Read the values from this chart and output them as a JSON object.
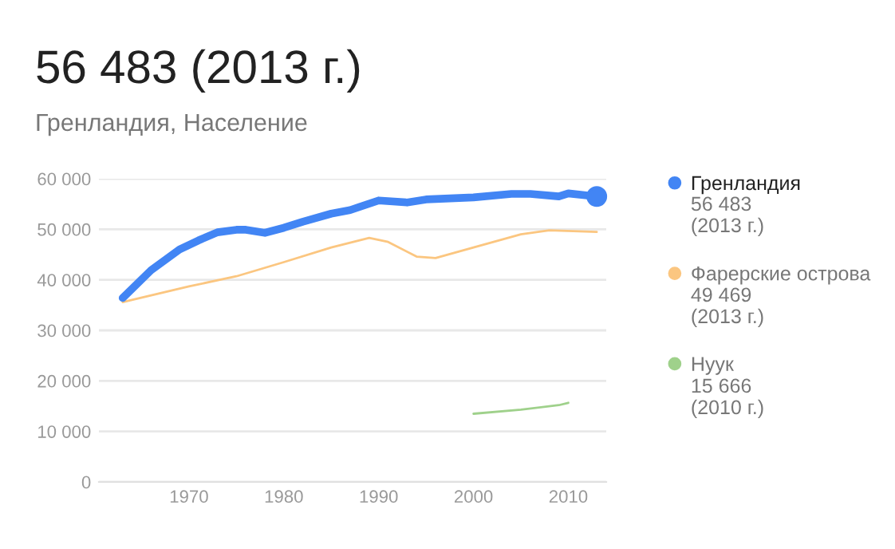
{
  "chart_data": {
    "type": "line",
    "title": "56 483 (2013 г.)",
    "subtitle": "Гренландия, Население",
    "series": [
      {
        "name": "Гренландия",
        "color": "#4285f4",
        "x": [
          1963,
          1966,
          1969,
          1971,
          1973,
          1975,
          1976,
          1978,
          1980,
          1982,
          1985,
          1987,
          1990,
          1993,
          1995,
          2000,
          2004,
          2006,
          2009,
          2010,
          2013
        ],
        "values": [
          36400,
          41900,
          46000,
          47800,
          49400,
          49900,
          49900,
          49300,
          50300,
          51500,
          53100,
          53800,
          55700,
          55300,
          55900,
          56300,
          57000,
          57000,
          56500,
          57100,
          56483
        ]
      },
      {
        "name": "Фарерские острова",
        "color": "#fbc680",
        "x": [
          1963,
          1970,
          1975,
          1980,
          1985,
          1989,
          1991,
          1994,
          1996,
          2000,
          2005,
          2008,
          2013
        ],
        "values": [
          35600,
          38700,
          40700,
          43500,
          46400,
          48300,
          47500,
          44600,
          44300,
          46400,
          49000,
          49800,
          49469
        ]
      },
      {
        "name": "Нуук",
        "color": "#9fd18b",
        "x": [
          2000,
          2005,
          2009,
          2010
        ],
        "values": [
          13500,
          14300,
          15200,
          15666
        ]
      },
      {
        "type": "scatter",
        "color": "#4285f4",
        "x": [
          2013
        ],
        "values": [
          56483
        ]
      }
    ],
    "annotations": [
      "56 483\n(2013 г.)",
      "49 469\n(2013 г.)",
      "15 666\n(2010 г.)"
    ],
    "xlim": [
      1960.5,
      2014
    ],
    "xticks": [
      1970,
      1980,
      1990,
      2000,
      2010
    ],
    "ylim": [
      0,
      60000
    ],
    "yticks": [
      {
        "value": 0,
        "label": "0"
      },
      {
        "value": 10000,
        "label": "10 000"
      },
      {
        "value": 20000,
        "label": "20 000"
      },
      {
        "value": 30000,
        "label": "30 000"
      },
      {
        "value": 40000,
        "label": "40 000"
      },
      {
        "value": 50000,
        "label": "50 000"
      },
      {
        "value": 60000,
        "label": "60 000"
      }
    ],
    "grid": "y",
    "legend": "right"
  }
}
